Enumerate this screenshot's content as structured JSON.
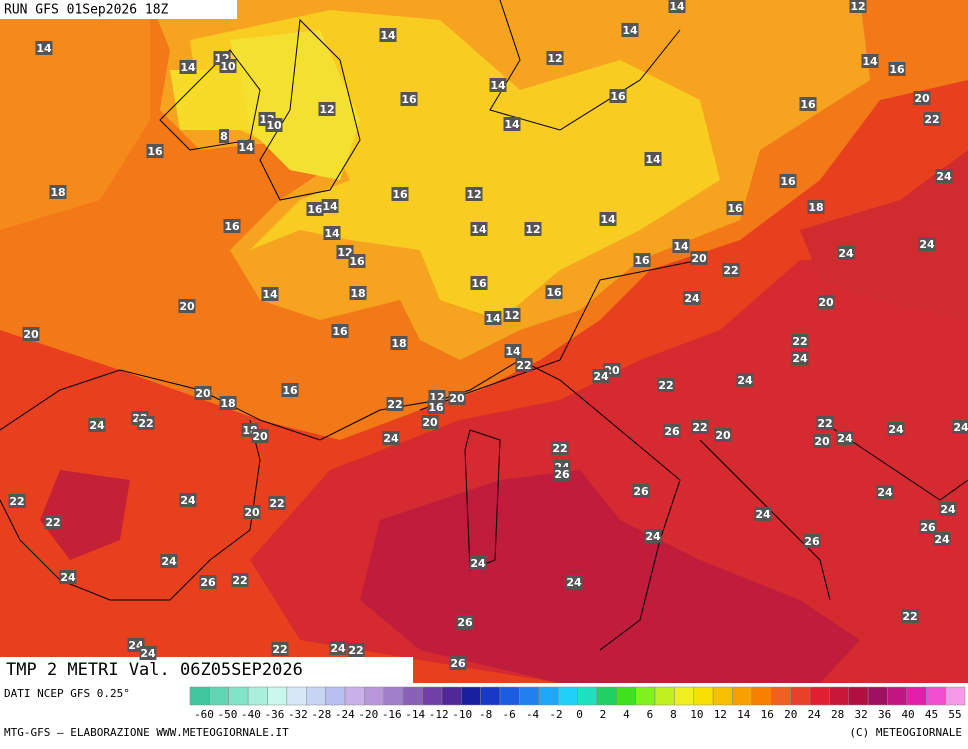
{
  "header": {
    "run": "RUN GFS 01Sep2026 18Z",
    "title": "TMP 2 METRI Val. 06Z05SEP2026"
  },
  "footer": {
    "source": "DATI NCEP GFS 0.25°",
    "credit": "MTG-GFS — ELABORAZIONE WWW.METEOGIORNALE.IT",
    "copyright": "(C) METEOGIORNALE"
  },
  "labels": [
    14,
    14,
    12,
    10,
    14,
    14,
    14,
    12,
    12,
    14,
    14,
    16,
    12,
    16,
    12,
    10,
    14,
    16,
    16,
    20,
    22,
    16,
    8,
    14,
    14,
    18,
    16,
    12,
    16,
    24,
    16,
    14,
    16,
    14,
    14,
    12,
    14,
    16,
    18,
    12,
    16,
    14,
    20,
    16,
    22,
    24,
    24,
    14,
    18,
    16,
    16,
    24,
    20,
    20,
    16,
    14,
    12,
    20,
    18,
    14,
    22,
    22,
    24,
    20,
    24,
    22,
    24,
    20,
    18,
    16,
    12,
    16,
    20,
    22,
    20,
    24,
    22,
    22,
    18,
    20,
    24,
    26,
    22,
    20,
    22,
    20,
    24,
    24,
    24,
    22,
    24,
    26,
    22,
    24,
    22,
    20,
    22,
    26,
    24,
    24,
    26,
    24,
    26,
    24,
    24,
    24,
    24,
    24,
    22,
    26,
    24,
    26,
    22,
    24,
    24,
    22,
    24,
    22,
    26
  ],
  "colorbar": {
    "ticks": [
      -60,
      -50,
      -40,
      -36,
      -32,
      -28,
      -24,
      -20,
      -16,
      -14,
      -12,
      -10,
      -8,
      -6,
      -4,
      -2,
      0,
      2,
      4,
      6,
      8,
      10,
      12,
      14,
      16,
      20,
      24,
      28,
      32,
      36,
      40,
      45,
      55
    ],
    "colors": [
      "#3fc8a0",
      "#5fd6b4",
      "#80e4c8",
      "#a8f0dc",
      "#c8f8ec",
      "#d8e8f8",
      "#c8d4f4",
      "#b8c0f0",
      "#c8b0e8",
      "#b898d8",
      "#a080c8",
      "#8860b8",
      "#7040a8",
      "#502898",
      "#1820a0",
      "#1838c8",
      "#1c5ce0",
      "#2080f0",
      "#20a8f8",
      "#20d0f8",
      "#20e0c0",
      "#20d060",
      "#40e020",
      "#80f020",
      "#c0f020",
      "#f0f020",
      "#f8e000",
      "#f8c000",
      "#f8a000",
      "#f88000",
      "#f06020",
      "#e84028",
      "#e02030",
      "#c81838",
      "#b01040",
      "#a01060",
      "#c01880",
      "#e020a8",
      "#f050d0",
      "#f898e8"
    ]
  }
}
